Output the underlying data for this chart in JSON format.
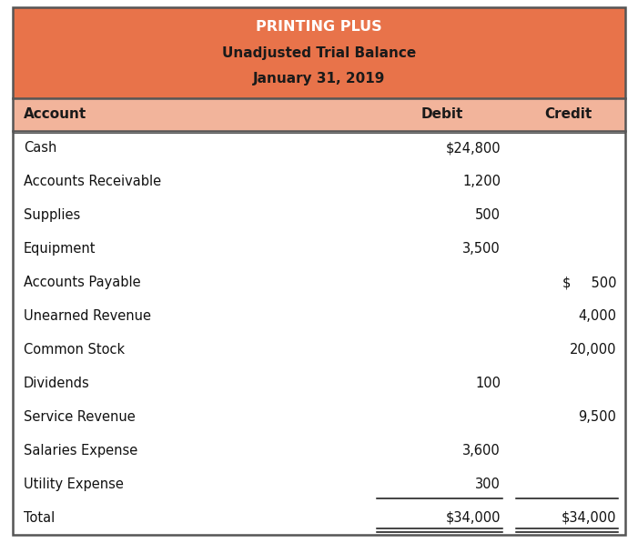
{
  "title_line1": "PRINTING PLUS",
  "title_line2": "Unadjusted Trial Balance",
  "title_line3": "January 31, 2019",
  "header_bg": "#E8734A",
  "header_text_color1": "#FFFFFF",
  "header_text_color2": "#1A1A1A",
  "col_header_bg": "#F2B49B",
  "col_header_text": "#1A1A1A",
  "table_bg": "#FFFFFF",
  "border_color": "#555555",
  "rows": [
    [
      "Cash",
      "$24,800",
      ""
    ],
    [
      "Accounts Receivable",
      "1,200",
      ""
    ],
    [
      "Supplies",
      "500",
      ""
    ],
    [
      "Equipment",
      "3,500",
      ""
    ],
    [
      "Accounts Payable",
      "",
      "$   500"
    ],
    [
      "Unearned Revenue",
      "",
      "4,000"
    ],
    [
      "Common Stock",
      "",
      "20,000"
    ],
    [
      "Dividends",
      "100",
      ""
    ],
    [
      "Service Revenue",
      "",
      "9,500"
    ],
    [
      "Salaries Expense",
      "3,600",
      ""
    ],
    [
      "Utility Expense",
      "300",
      ""
    ]
  ],
  "total_row": [
    "Total",
    "$34,000",
    "$34,000"
  ],
  "col_headers": [
    "Account",
    "Debit",
    "Credit"
  ],
  "title1_fontsize": 11.5,
  "title23_fontsize": 11.0,
  "header_fontsize": 11.0,
  "data_fontsize": 10.5,
  "fig_width": 7.01,
  "fig_height": 6.08,
  "dpi": 100
}
